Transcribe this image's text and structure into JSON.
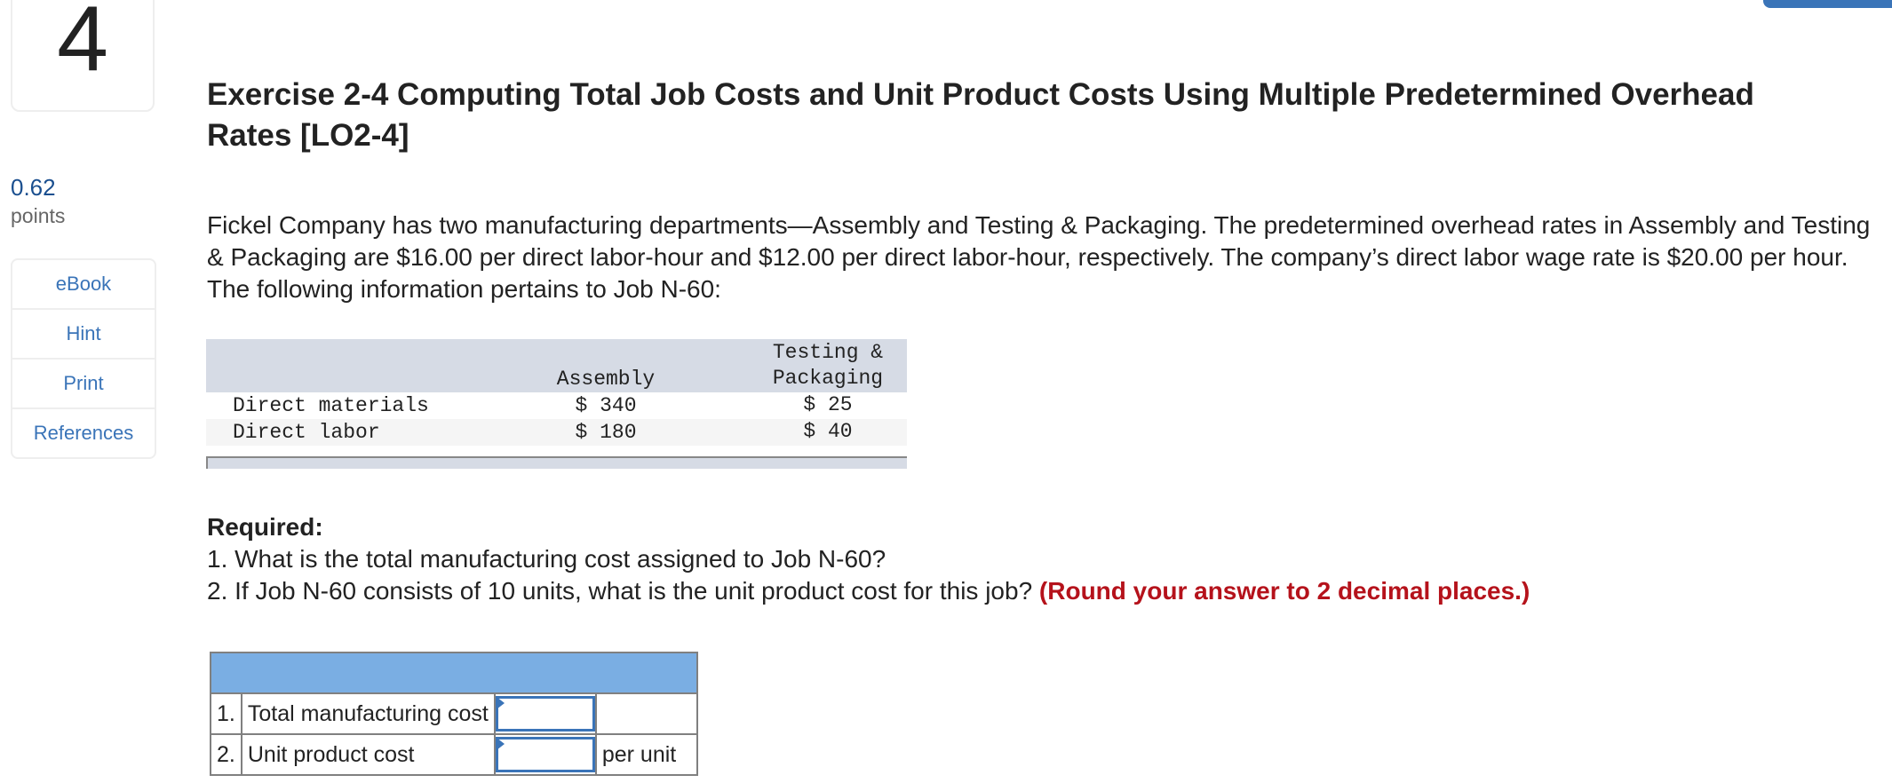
{
  "question_number": "4",
  "score": {
    "value": "0.62",
    "label": "points"
  },
  "sidebar": {
    "items": [
      {
        "label": "eBook"
      },
      {
        "label": "Hint"
      },
      {
        "label": "Print"
      },
      {
        "label": "References"
      }
    ]
  },
  "title": "Exercise 2-4 Computing Total Job Costs and Unit Product Costs Using Multiple Predetermined Overhead Rates [LO2-4]",
  "paragraph": "Fickel Company has two manufacturing departments—Assembly and Testing & Packaging. The predetermined overhead rates in Assembly and Testing & Packaging are $16.00 per direct labor-hour and $12.00 per direct labor-hour, respectively. The company’s direct labor wage rate is $20.00 per hour. The following information pertains to Job N-60:",
  "data_table": {
    "headers": [
      "",
      "Assembly",
      "Testing &\nPackaging"
    ],
    "header_col3_line1": "Testing &",
    "header_col3_line2": "Packaging",
    "rows": [
      {
        "label": "Direct materials",
        "assembly": "$ 340",
        "testing": "$ 25"
      },
      {
        "label": "Direct labor",
        "assembly": "$ 180",
        "testing": "$ 40"
      }
    ]
  },
  "required": {
    "heading": "Required:",
    "q1": "1. What is the total manufacturing cost assigned to Job N-60?",
    "q2": "2. If Job N-60 consists of 10 units, what is the unit product cost for this job?",
    "q2_note": "(Round your answer to 2 decimal places.)"
  },
  "answer_table": {
    "rows": [
      {
        "num": "1.",
        "label": "Total manufacturing cost",
        "value": "",
        "unit": ""
      },
      {
        "num": "2.",
        "label": "Unit product cost",
        "value": "",
        "unit": "per unit"
      }
    ]
  },
  "colors": {
    "accent": "#3a74b8",
    "header_blue": "#7aaee3",
    "note_red": "#b5121b",
    "table_header": "#d6dbe5"
  }
}
